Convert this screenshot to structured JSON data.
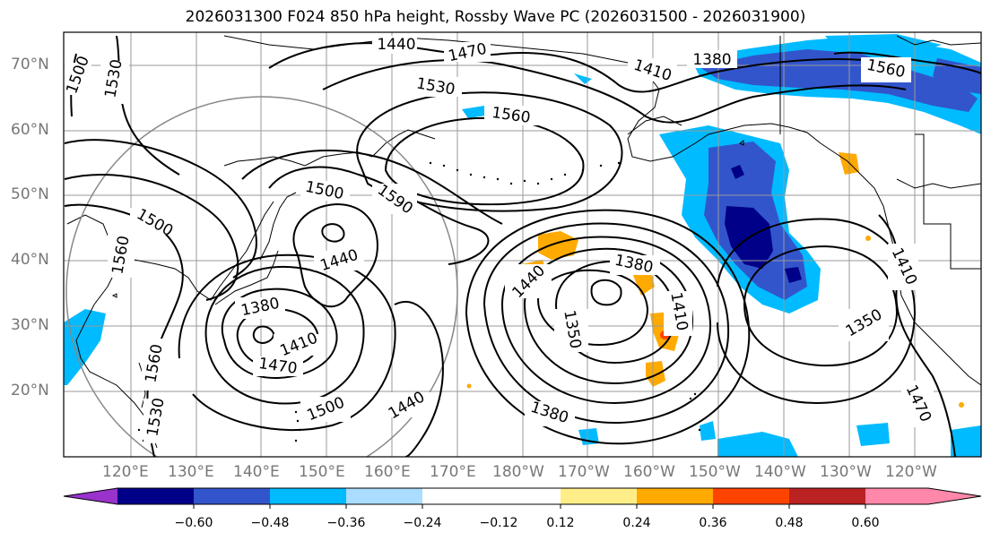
{
  "title": "2026031300 F024 850 hPa height, Rossby Wave PC (2026031500 - 2026031900)",
  "map": {
    "lat_labels": [
      "70°N",
      "60°N",
      "50°N",
      "40°N",
      "30°N",
      "20°N"
    ],
    "lon_labels": [
      "120°E",
      "130°E",
      "140°E",
      "150°E",
      "160°E",
      "170°E",
      "180°W",
      "170°W",
      "160°W",
      "150°W",
      "140°W",
      "130°W",
      "120°W"
    ],
    "contour_labels": [
      "1440",
      "1470",
      "1410",
      "1380",
      "1530",
      "1560",
      "1350",
      "1410",
      "1380",
      "1500",
      "1590",
      "1500",
      "1560",
      "1440",
      "1440",
      "1380",
      "1410",
      "1470",
      "1500",
      "1440",
      "1380",
      "1350",
      "1410",
      "1470",
      "1560",
      "1530",
      "1500",
      "1560",
      "1530"
    ]
  },
  "colorbar": {
    "ticks": [
      "−0.60",
      "−0.48",
      "−0.36",
      "−0.24",
      "−0.12",
      "0.12",
      "0.24",
      "0.36",
      "0.48",
      "0.60"
    ],
    "colors": [
      "#9933cc",
      "#000088",
      "#3355cc",
      "#00bbff",
      "#aaddff",
      "#ffffff",
      "#ffee88",
      "#ffaa00",
      "#ff4400",
      "#bb2222",
      "#ff88aa"
    ]
  }
}
